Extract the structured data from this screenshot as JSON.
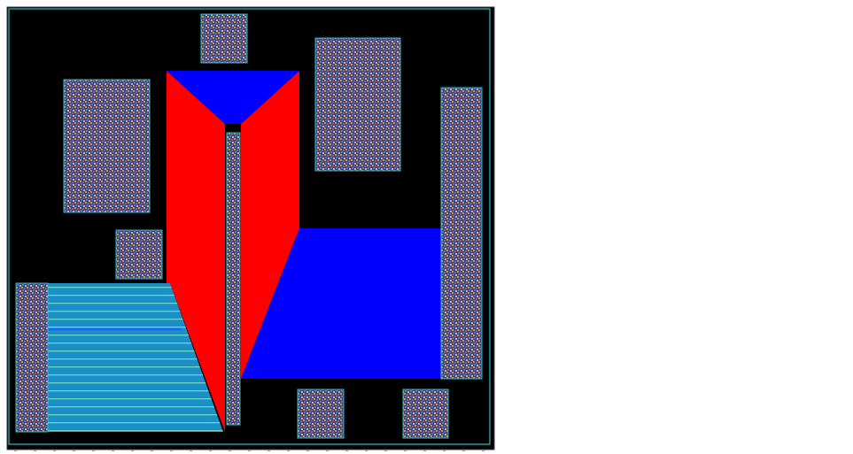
{
  "canvas": {
    "background": "#000000",
    "page_background": "#ffffff",
    "border_color": "#2bbcc8"
  },
  "colors": {
    "red_layer": "#ff0000",
    "blue_layer": "#0000ff",
    "striped_fill": "#1a8fc8",
    "striped_line": "#6fd6c2",
    "cell_outline": "#2bbcc8",
    "cell_pattern_a": "#8a5a9a",
    "cell_pattern_b": "#b8a63a",
    "cell_pattern_c": "#3a7fd0"
  },
  "shapes": [
    {
      "name": "fill-cell-top",
      "kind": "pattern-cell"
    },
    {
      "name": "fill-cell-left-large",
      "kind": "pattern-cell"
    },
    {
      "name": "fill-cell-left-small",
      "kind": "pattern-cell"
    },
    {
      "name": "fill-cell-top-right",
      "kind": "pattern-cell"
    },
    {
      "name": "fill-cell-right-tall",
      "kind": "pattern-cell"
    },
    {
      "name": "fill-cell-bottom-left-tall",
      "kind": "pattern-cell"
    },
    {
      "name": "fill-cell-bottom-mid",
      "kind": "pattern-cell"
    },
    {
      "name": "fill-cell-bottom-right",
      "kind": "pattern-cell"
    },
    {
      "name": "center-strip",
      "kind": "pattern-cell"
    },
    {
      "name": "red-polygon-left",
      "kind": "red"
    },
    {
      "name": "red-polygon-right",
      "kind": "red"
    },
    {
      "name": "blue-triangle-top",
      "kind": "blue"
    },
    {
      "name": "blue-polygon-right",
      "kind": "blue"
    },
    {
      "name": "striped-region-left",
      "kind": "striped"
    }
  ]
}
